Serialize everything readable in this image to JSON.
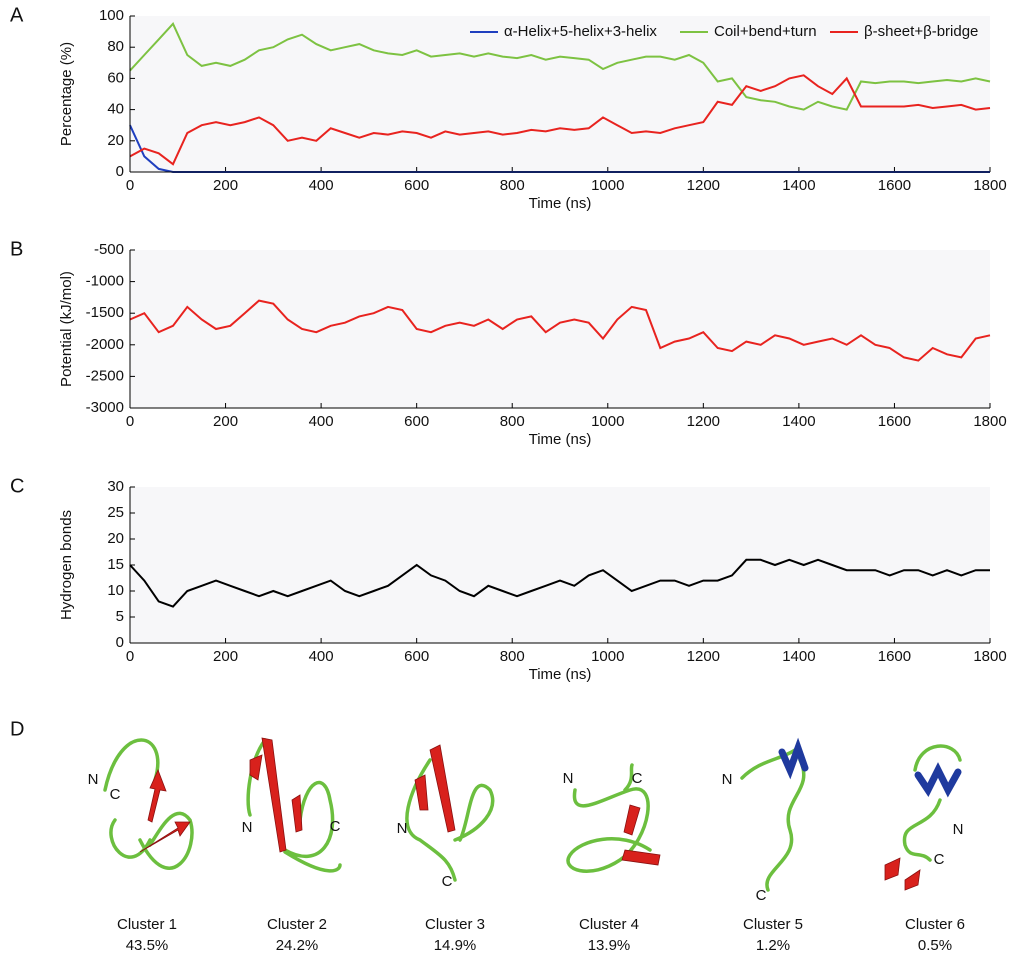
{
  "chart_data": [
    {
      "type": "line",
      "panel_label": "A",
      "x_label": "Time (ns)",
      "y_label": "Percentage (%)",
      "xlim": [
        0,
        1800
      ],
      "xticks": [
        0,
        200,
        400,
        600,
        800,
        1000,
        1200,
        1400,
        1600,
        1800
      ],
      "ylim": [
        0,
        100
      ],
      "yticks": [
        0,
        20,
        40,
        60,
        80,
        100
      ],
      "legend": "upper right",
      "x": [
        0,
        30,
        60,
        90,
        120,
        150,
        180,
        210,
        240,
        270,
        300,
        330,
        360,
        390,
        420,
        450,
        480,
        510,
        540,
        570,
        600,
        630,
        660,
        690,
        720,
        750,
        780,
        810,
        840,
        870,
        900,
        930,
        960,
        990,
        1020,
        1050,
        1080,
        1110,
        1140,
        1170,
        1200,
        1230,
        1260,
        1290,
        1320,
        1350,
        1380,
        1410,
        1440,
        1470,
        1500,
        1530,
        1560,
        1590,
        1620,
        1650,
        1680,
        1710,
        1740,
        1770,
        1800
      ],
      "series": [
        {
          "name": "α-Helix+5-helix+3-helix",
          "color": "#1f3fbf",
          "values": [
            30,
            10,
            2,
            0,
            0,
            0,
            0,
            0,
            0,
            0,
            0,
            0,
            0,
            0,
            0,
            0,
            0,
            0,
            0,
            0,
            0,
            0,
            0,
            0,
            0,
            0,
            0,
            0,
            0,
            0,
            0,
            0,
            0,
            0,
            0,
            0,
            0,
            0,
            0,
            0,
            0,
            0,
            0,
            0,
            0,
            0,
            0,
            0,
            0,
            0,
            0,
            0,
            0,
            0,
            0,
            0,
            0,
            0,
            0,
            0,
            0
          ]
        },
        {
          "name": "Coil+bend+turn",
          "color": "#7dc242",
          "values": [
            65,
            75,
            85,
            95,
            75,
            68,
            70,
            68,
            72,
            78,
            80,
            85,
            88,
            82,
            78,
            80,
            82,
            78,
            76,
            75,
            78,
            74,
            75,
            76,
            74,
            76,
            74,
            73,
            75,
            72,
            74,
            73,
            72,
            66,
            70,
            72,
            74,
            74,
            72,
            75,
            70,
            58,
            60,
            48,
            46,
            45,
            42,
            40,
            45,
            42,
            40,
            58,
            57,
            58,
            58,
            57,
            58,
            59,
            58,
            60,
            58
          ]
        },
        {
          "name": "β-sheet+β-bridge",
          "color": "#e8231f",
          "values": [
            10,
            15,
            12,
            5,
            25,
            30,
            32,
            30,
            32,
            35,
            30,
            20,
            22,
            20,
            28,
            25,
            22,
            25,
            24,
            26,
            25,
            22,
            26,
            24,
            25,
            26,
            24,
            25,
            27,
            26,
            28,
            27,
            28,
            35,
            30,
            25,
            26,
            25,
            28,
            30,
            32,
            45,
            43,
            55,
            52,
            55,
            60,
            62,
            55,
            50,
            60,
            42,
            42,
            42,
            42,
            43,
            41,
            42,
            43,
            40,
            41
          ]
        }
      ]
    },
    {
      "type": "line",
      "panel_label": "B",
      "x_label": "Time (ns)",
      "y_label": "Potential (kJ/mol)",
      "xlim": [
        0,
        1800
      ],
      "xticks": [
        0,
        200,
        400,
        600,
        800,
        1000,
        1200,
        1400,
        1600,
        1800
      ],
      "ylim": [
        -3000,
        -500
      ],
      "yticks": [
        -3000,
        -2500,
        -2000,
        -1500,
        -1000,
        -500
      ],
      "x": [
        0,
        30,
        60,
        90,
        120,
        150,
        180,
        210,
        240,
        270,
        300,
        330,
        360,
        390,
        420,
        450,
        480,
        510,
        540,
        570,
        600,
        630,
        660,
        690,
        720,
        750,
        780,
        810,
        840,
        870,
        900,
        930,
        960,
        990,
        1020,
        1050,
        1080,
        1110,
        1140,
        1170,
        1200,
        1230,
        1260,
        1290,
        1320,
        1350,
        1380,
        1410,
        1440,
        1470,
        1500,
        1530,
        1560,
        1590,
        1620,
        1650,
        1680,
        1710,
        1740,
        1770,
        1800
      ],
      "series": [
        {
          "color": "#e8231f",
          "values": [
            -1600,
            -1500,
            -1800,
            -1700,
            -1400,
            -1600,
            -1750,
            -1700,
            -1500,
            -1300,
            -1350,
            -1600,
            -1750,
            -1800,
            -1700,
            -1650,
            -1550,
            -1500,
            -1400,
            -1450,
            -1750,
            -1800,
            -1700,
            -1650,
            -1700,
            -1600,
            -1750,
            -1600,
            -1550,
            -1800,
            -1650,
            -1600,
            -1650,
            -1900,
            -1600,
            -1400,
            -1450,
            -2050,
            -1950,
            -1900,
            -1800,
            -2050,
            -2100,
            -1950,
            -2000,
            -1850,
            -1900,
            -2000,
            -1950,
            -1900,
            -2000,
            -1850,
            -2000,
            -2050,
            -2200,
            -2250,
            -2050,
            -2150,
            -2200,
            -1900,
            -1850
          ]
        }
      ]
    },
    {
      "type": "line",
      "panel_label": "C",
      "x_label": "Time (ns)",
      "y_label": "Hydrogen bonds",
      "xlim": [
        0,
        1800
      ],
      "xticks": [
        0,
        200,
        400,
        600,
        800,
        1000,
        1200,
        1400,
        1600,
        1800
      ],
      "ylim": [
        0,
        30
      ],
      "yticks": [
        0,
        5,
        10,
        15,
        20,
        25,
        30
      ],
      "x": [
        0,
        30,
        60,
        90,
        120,
        150,
        180,
        210,
        240,
        270,
        300,
        330,
        360,
        390,
        420,
        450,
        480,
        510,
        540,
        570,
        600,
        630,
        660,
        690,
        720,
        750,
        780,
        810,
        840,
        870,
        900,
        930,
        960,
        990,
        1020,
        1050,
        1080,
        1110,
        1140,
        1170,
        1200,
        1230,
        1260,
        1290,
        1320,
        1350,
        1380,
        1410,
        1440,
        1470,
        1500,
        1530,
        1560,
        1590,
        1620,
        1650,
        1680,
        1710,
        1740,
        1770,
        1800
      ],
      "series": [
        {
          "color": "#000000",
          "values": [
            15,
            12,
            8,
            7,
            10,
            11,
            12,
            11,
            10,
            9,
            10,
            9,
            10,
            11,
            12,
            10,
            9,
            10,
            11,
            13,
            15,
            13,
            12,
            10,
            9,
            11,
            10,
            9,
            10,
            11,
            12,
            11,
            13,
            14,
            12,
            10,
            11,
            12,
            12,
            11,
            12,
            12,
            13,
            16,
            16,
            15,
            16,
            15,
            16,
            15,
            14,
            14,
            14,
            13,
            14,
            14,
            13,
            14,
            13,
            14,
            14
          ]
        }
      ]
    }
  ],
  "structures": {
    "panel_label": "D",
    "clusters": [
      {
        "name": "Cluster 1",
        "share": "43.5%",
        "n_label": "N",
        "c_label": "C"
      },
      {
        "name": "Cluster 2",
        "share": "24.2%",
        "n_label": "N",
        "c_label": "C"
      },
      {
        "name": "Cluster 3",
        "share": "14.9%",
        "n_label": "N",
        "c_label": "C"
      },
      {
        "name": "Cluster 4",
        "share": "13.9%",
        "n_label": "N",
        "c_label": "C"
      },
      {
        "name": "Cluster 5",
        "share": "1.2%",
        "n_label": "N",
        "c_label": "C"
      },
      {
        "name": "Cluster 6",
        "share": "0.5%",
        "n_label": "N",
        "c_label": "C"
      }
    ]
  }
}
